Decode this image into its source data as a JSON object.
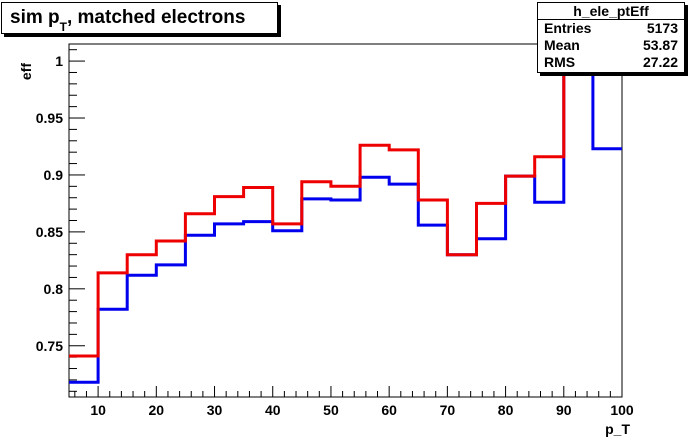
{
  "title": {
    "main": "sim p",
    "sub": "T",
    "rest": ", matched electrons"
  },
  "stats": {
    "name": "h_ele_ptEff",
    "rows": [
      {
        "label": "Entries",
        "value": "5173"
      },
      {
        "label": "Mean",
        "value": "53.87"
      },
      {
        "label": "RMS",
        "value": "27.22"
      }
    ]
  },
  "chart_data": {
    "type": "line",
    "style": "step",
    "xlabel": "p_T",
    "ylabel": "eff",
    "xlim": [
      5,
      100
    ],
    "ylim": [
      0.705,
      1.015
    ],
    "x_ticks": [
      10,
      20,
      30,
      40,
      50,
      60,
      70,
      80,
      90,
      100
    ],
    "y_ticks": [
      0.75,
      0.8,
      0.85,
      0.9,
      0.95,
      1
    ],
    "bin_edges": [
      5,
      10,
      15,
      20,
      25,
      30,
      35,
      40,
      45,
      50,
      55,
      60,
      65,
      70,
      75,
      80,
      85,
      90,
      95,
      100
    ],
    "series": [
      {
        "color": "#0000ee",
        "values": [
          0.718,
          0.782,
          0.812,
          0.821,
          0.847,
          0.857,
          0.859,
          0.851,
          0.879,
          0.878,
          0.898,
          0.892,
          0.856,
          0.83,
          0.844,
          0.899,
          0.876,
          1.0,
          0.923
        ]
      },
      {
        "color": "#ee0000",
        "values": [
          0.741,
          0.814,
          0.83,
          0.842,
          0.866,
          0.881,
          0.889,
          0.857,
          0.894,
          0.89,
          0.926,
          0.922,
          0.878,
          0.83,
          0.875,
          0.899,
          0.916,
          1.0,
          1.0
        ]
      }
    ],
    "grid": false,
    "legend": "none"
  }
}
